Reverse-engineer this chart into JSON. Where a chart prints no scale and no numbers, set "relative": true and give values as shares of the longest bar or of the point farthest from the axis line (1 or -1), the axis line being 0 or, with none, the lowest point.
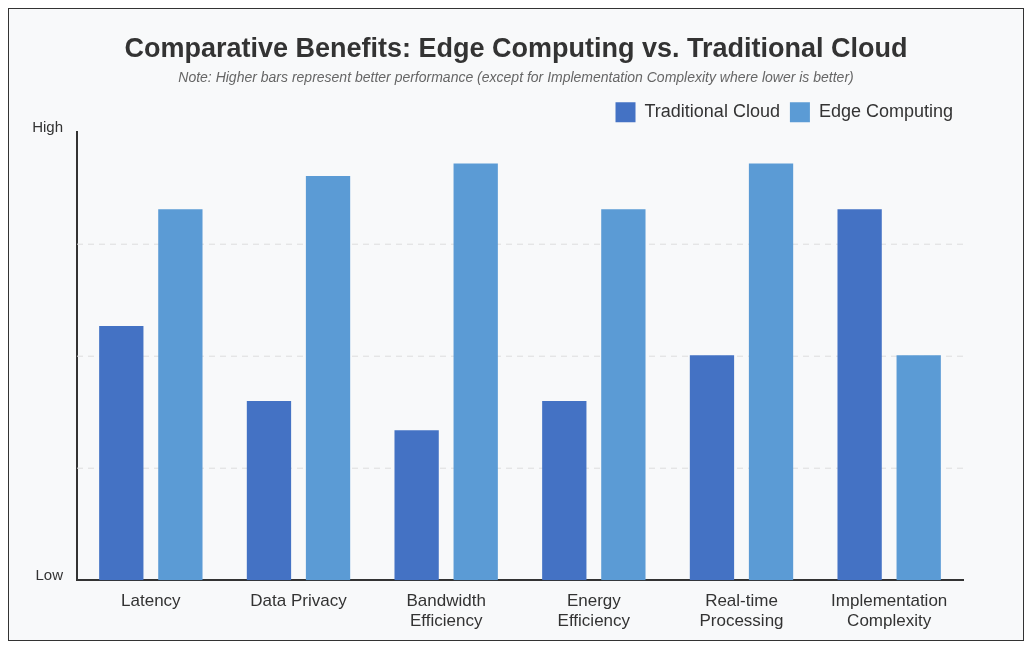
{
  "chart_data": {
    "type": "bar",
    "title": "Comparative Benefits: Edge Computing vs. Traditional Cloud",
    "subtitle": "Note: Higher bars represent better performance (except for Implementation Complexity where lower is better)",
    "categories": [
      "Latency",
      "Data Privacy",
      "Bandwidth Efficiency",
      "Energy Efficiency",
      "Real-time Processing",
      "Implementation Complexity"
    ],
    "relative": true,
    "series": [
      {
        "name": "Traditional Cloud",
        "color": "#4472c4",
        "values": [
          0.61,
          0.43,
          0.36,
          0.43,
          0.54,
          0.89
        ]
      },
      {
        "name": "Edge Computing",
        "color": "#5b9bd5",
        "values": [
          0.89,
          0.97,
          1,
          0.89,
          1,
          0.54
        ]
      }
    ],
    "annotations": [
      "High",
      "Low"
    ],
    "grid": "y",
    "legend": "top right"
  }
}
